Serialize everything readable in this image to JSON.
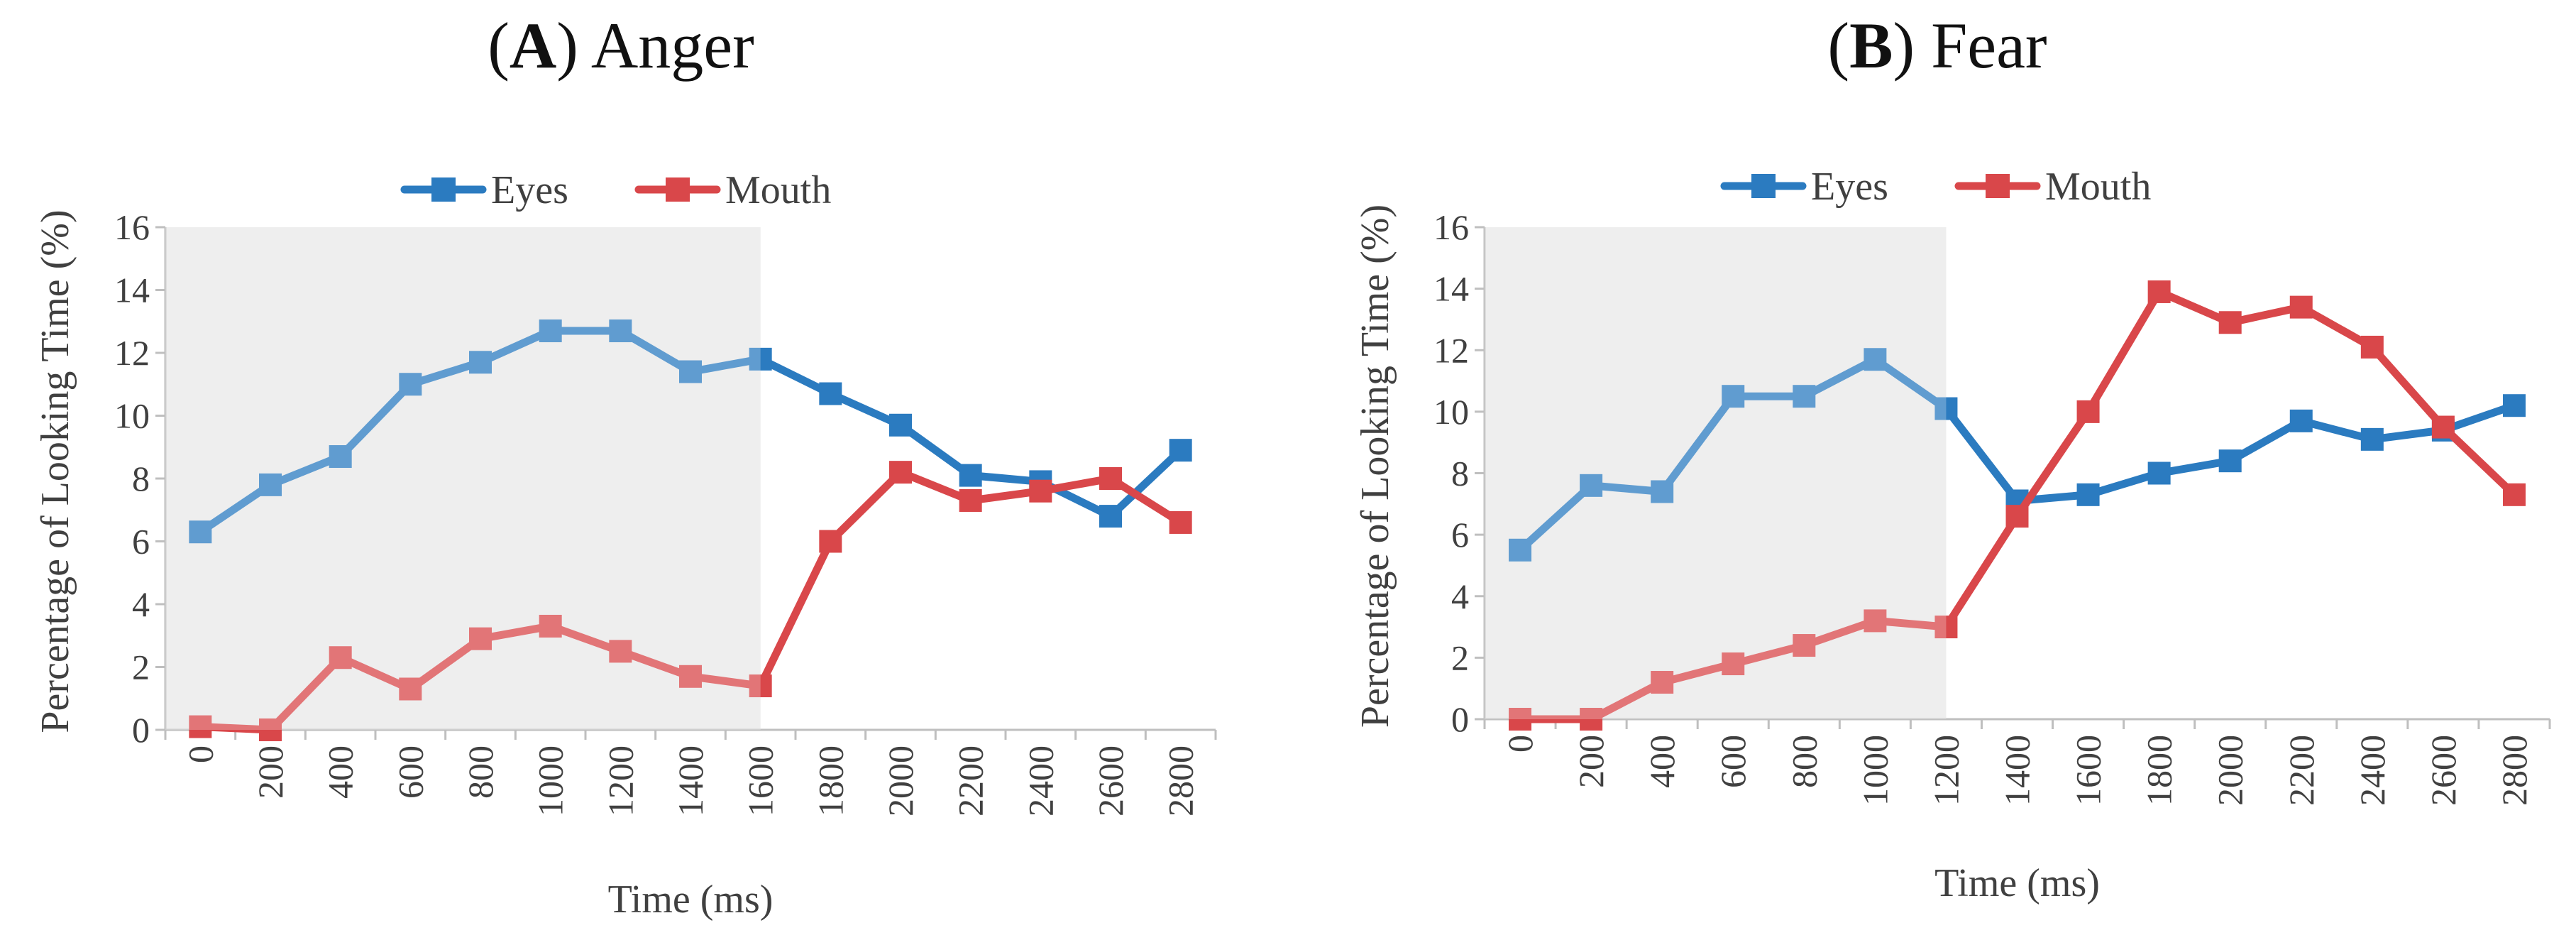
{
  "chart_data": [
    {
      "type": "line",
      "panel_letter": "A",
      "title": "Anger",
      "xlabel": "Time (ms)",
      "ylabel": "Percentage of Looking Time (%)",
      "categories": [
        "0",
        "200",
        "400",
        "600",
        "800",
        "1000",
        "1200",
        "1400",
        "1600",
        "1800",
        "2000",
        "2200",
        "2400",
        "2600",
        "2800"
      ],
      "ylim": [
        0,
        16
      ],
      "yticks": [
        0,
        2,
        4,
        6,
        8,
        10,
        12,
        14,
        16
      ],
      "shaded_region_categories": [
        0,
        8.5
      ],
      "legend_position": "top-center",
      "series": [
        {
          "name": "Eyes",
          "color": "#2b7bc0",
          "values": [
            6.3,
            7.8,
            8.7,
            11.0,
            11.7,
            12.7,
            12.7,
            11.4,
            11.8,
            10.7,
            9.7,
            8.1,
            7.9,
            6.8,
            8.9
          ]
        },
        {
          "name": "Mouth",
          "color": "#d9474a",
          "values": [
            0.1,
            0.0,
            2.3,
            1.3,
            2.9,
            3.3,
            2.5,
            1.7,
            1.4,
            6.0,
            8.2,
            7.3,
            7.6,
            8.0,
            6.6
          ]
        }
      ]
    },
    {
      "type": "line",
      "panel_letter": "B",
      "title": "Fear",
      "xlabel": "Time (ms)",
      "ylabel": "Percentage of Looking Time (%)",
      "categories": [
        "0",
        "200",
        "400",
        "600",
        "800",
        "1000",
        "1200",
        "1400",
        "1600",
        "1800",
        "2000",
        "2200",
        "2400",
        "2600",
        "2800"
      ],
      "ylim": [
        0,
        16
      ],
      "yticks": [
        0,
        2,
        4,
        6,
        8,
        10,
        12,
        14,
        16
      ],
      "shaded_region_categories": [
        0,
        6.5
      ],
      "legend_position": "top-center",
      "series": [
        {
          "name": "Eyes",
          "color": "#2b7bc0",
          "values": [
            5.5,
            7.6,
            7.4,
            10.5,
            10.5,
            11.7,
            10.1,
            7.1,
            7.3,
            8.0,
            8.4,
            9.7,
            9.1,
            9.4,
            10.2
          ]
        },
        {
          "name": "Mouth",
          "color": "#d9474a",
          "values": [
            0.0,
            0.0,
            1.2,
            1.8,
            2.4,
            3.2,
            3.0,
            6.6,
            10.0,
            13.9,
            12.9,
            13.4,
            12.1,
            9.5,
            7.3
          ]
        }
      ]
    }
  ]
}
